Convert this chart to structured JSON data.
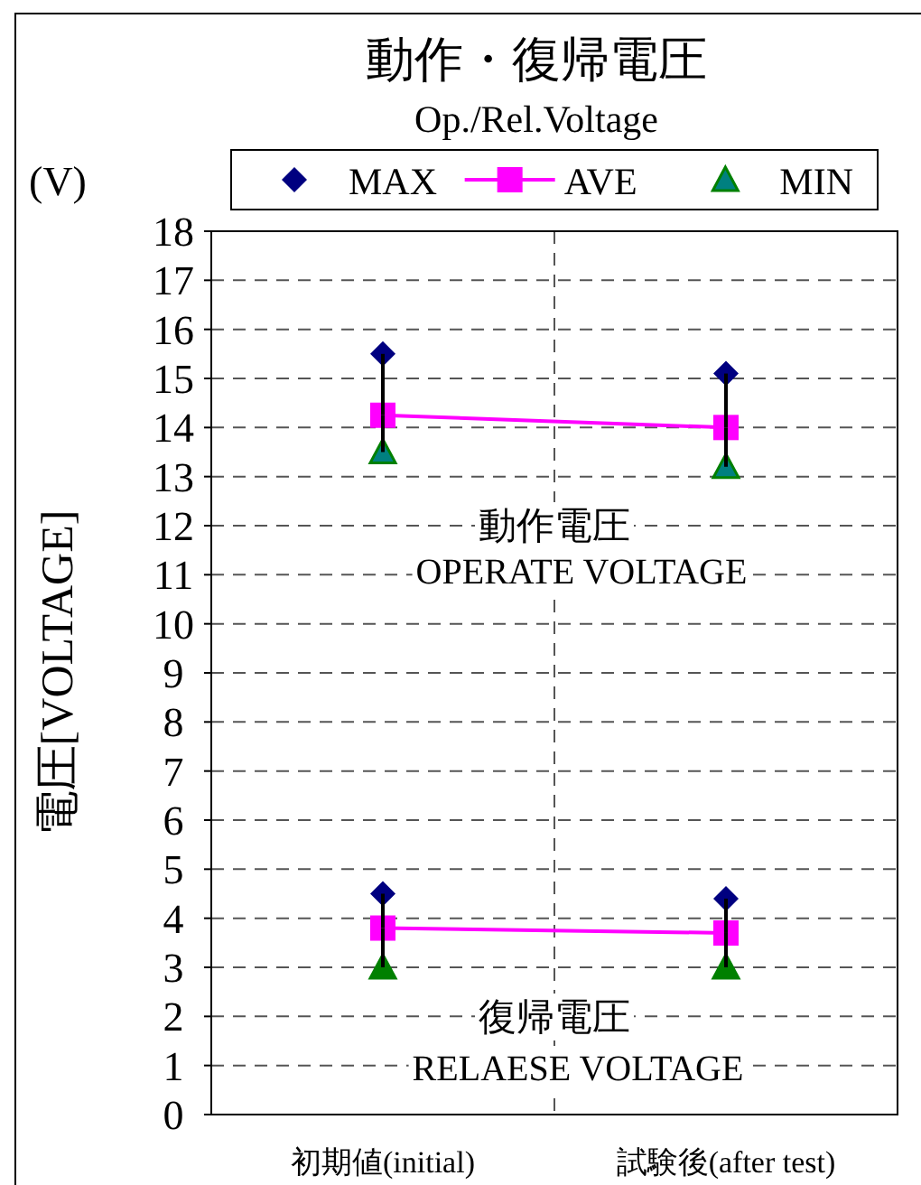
{
  "chart_data": {
    "type": "line",
    "title": "動作・復帰電圧",
    "subtitle": "Op./Rel.Voltage",
    "ylabel": "電圧[VOLTAGE]",
    "annotations": [
      "(V)",
      "動作電圧",
      "OPERATE VOLTAGE",
      "復帰電圧",
      "RELAESE VOLTAGE"
    ],
    "categories": [
      "初期値(initial)",
      "試験後(after test)"
    ],
    "ylim": [
      0,
      18
    ],
    "yticks": [
      0,
      1,
      2,
      3,
      4,
      5,
      6,
      7,
      8,
      9,
      10,
      11,
      12,
      13,
      14,
      15,
      16,
      17,
      18
    ],
    "grid": true,
    "legend": "top",
    "series": [
      {
        "name": "MAX",
        "type": "scatter",
        "marker": "diamond",
        "color": "#000080",
        "x": [
          "初期値(initial)",
          "試験後(after test)",
          "初期値(initial)",
          "試験後(after test)"
        ],
        "values": [
          15.5,
          15.1,
          4.5,
          4.4
        ]
      },
      {
        "name": "AVE",
        "type": "line",
        "marker": "square",
        "line_style": "solid",
        "color": "#ff00ff",
        "values": [
          14.25,
          14.0
        ],
        "errors": [
          [
            13.5,
            15.5
          ],
          [
            13.2,
            15.1
          ]
        ]
      },
      {
        "type": "line",
        "marker": "square",
        "line_style": "solid",
        "color": "#ff00ff",
        "values": [
          3.8,
          3.7
        ],
        "errors": [
          [
            3.0,
            4.5
          ],
          [
            3.0,
            4.4
          ]
        ]
      },
      {
        "name": "MIN",
        "type": "scatter",
        "marker": "triangle",
        "color": "#008000",
        "colors": [
          "#008080",
          "#008080",
          "#008000",
          "#008000"
        ],
        "x": [
          "初期値(initial)",
          "試験後(after test)",
          "初期値(initial)",
          "試験後(after test)"
        ],
        "values": [
          13.5,
          13.2,
          3.0,
          3.0
        ]
      }
    ]
  }
}
